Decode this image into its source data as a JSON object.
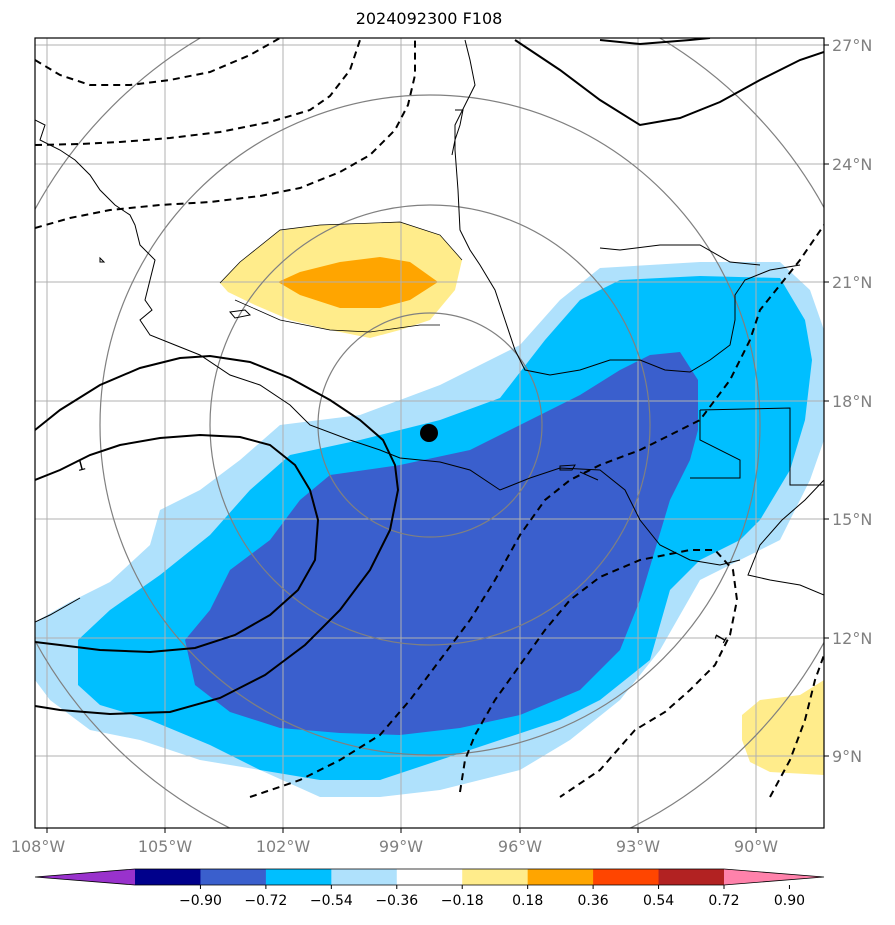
{
  "title": "2024092300 F108",
  "longitude_labels": [
    "108°W",
    "105°W",
    "102°W",
    "99°W",
    "96°W",
    "93°W",
    "90°W"
  ],
  "latitude_labels": [
    "27°N",
    "24°N",
    "21°N",
    "18°N",
    "15°N",
    "12°N",
    "9°N"
  ],
  "contour_labels": [
    "1",
    "1"
  ],
  "colorbar": {
    "tick_labels": [
      "−0.90",
      "−0.72",
      "−0.54",
      "−0.36",
      "−0.18",
      "0.18",
      "0.36",
      "0.54",
      "0.72",
      "0.90"
    ],
    "colors": [
      "#9932cc",
      "#00008b",
      "#3a5fcd",
      "#00bfff",
      "#afe1fc",
      "#ffffff",
      "#ffec8b",
      "#ffa500",
      "#ff4500",
      "#b22222",
      "#ff82ab"
    ]
  },
  "colors": {
    "blue_dark": "#3a5fcd",
    "blue_mid": "#00bfff",
    "blue_light": "#afe1fc",
    "yellow_light": "#ffec8b",
    "orange": "#ffa500",
    "grid": "#b0b0b0",
    "range_rings": "#808080"
  },
  "center_marker": {
    "lon": -98.3,
    "lat": 17.2
  }
}
